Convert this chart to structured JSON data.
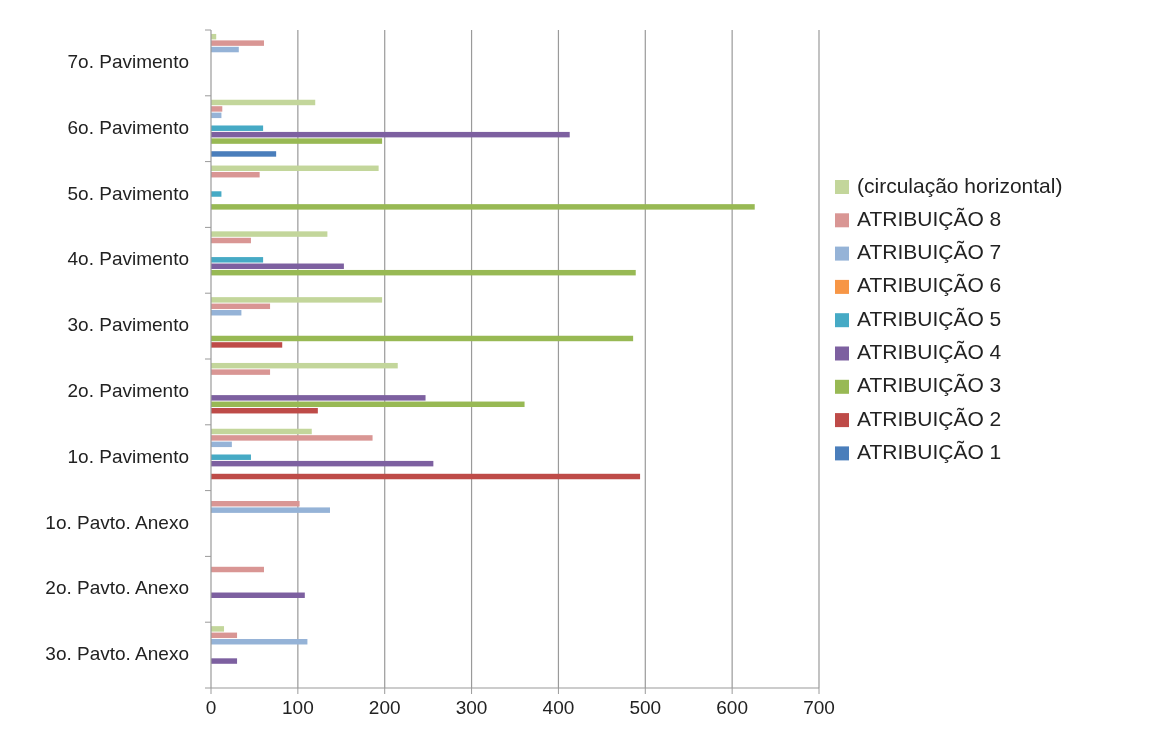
{
  "chart_data": {
    "type": "bar",
    "orientation": "horizontal",
    "categories": [
      "7o. Pavimento",
      "6o. Pavimento",
      "5o. Pavimento",
      "4o. Pavimento",
      "3o. Pavimento",
      "2o. Pavimento",
      "1o. Pavimento",
      "1o. Pavto. Anexo",
      "2o. Pavto. Anexo",
      "3o. Pavto. Anexo"
    ],
    "series": [
      {
        "name": "(circulação horizontal)",
        "color": "#c3d69b",
        "values": [
          6,
          120,
          193,
          134,
          197,
          215,
          116,
          null,
          null,
          15
        ]
      },
      {
        "name": "ATRIBUIÇÃO 8",
        "color": "#d99694",
        "values": [
          61,
          13,
          56,
          46,
          68,
          68,
          186,
          102,
          61,
          30
        ]
      },
      {
        "name": "ATRIBUIÇÃO 7",
        "color": "#95b3d7",
        "values": [
          32,
          12,
          null,
          null,
          35,
          null,
          24,
          137,
          null,
          111
        ]
      },
      {
        "name": "ATRIBUIÇÃO 6",
        "color": "#f79646",
        "values": [
          null,
          null,
          null,
          null,
          null,
          null,
          null,
          null,
          null,
          null
        ]
      },
      {
        "name": "ATRIBUIÇÃO 5",
        "color": "#46aac5",
        "values": [
          null,
          60,
          12,
          60,
          null,
          null,
          46,
          null,
          null,
          null
        ]
      },
      {
        "name": "ATRIBUIÇÃO 4",
        "color": "#7d60a0",
        "values": [
          null,
          413,
          null,
          153,
          null,
          247,
          256,
          null,
          108,
          30
        ]
      },
      {
        "name": "ATRIBUIÇÃO 3",
        "color": "#98b954",
        "values": [
          null,
          197,
          626,
          489,
          486,
          361,
          null,
          null,
          null,
          null
        ]
      },
      {
        "name": "ATRIBUIÇÃO 2",
        "color": "#be4b48",
        "values": [
          null,
          null,
          null,
          null,
          82,
          123,
          494,
          null,
          null,
          null
        ]
      },
      {
        "name": "ATRIBUIÇÃO 1",
        "color": "#4a7ebb",
        "values": [
          null,
          75,
          null,
          null,
          null,
          null,
          null,
          null,
          null,
          null
        ]
      }
    ],
    "xlim": [
      0,
      700
    ],
    "xticks": [
      0,
      100,
      200,
      300,
      400,
      500,
      600,
      700
    ],
    "grid": "x",
    "legend": "right"
  }
}
